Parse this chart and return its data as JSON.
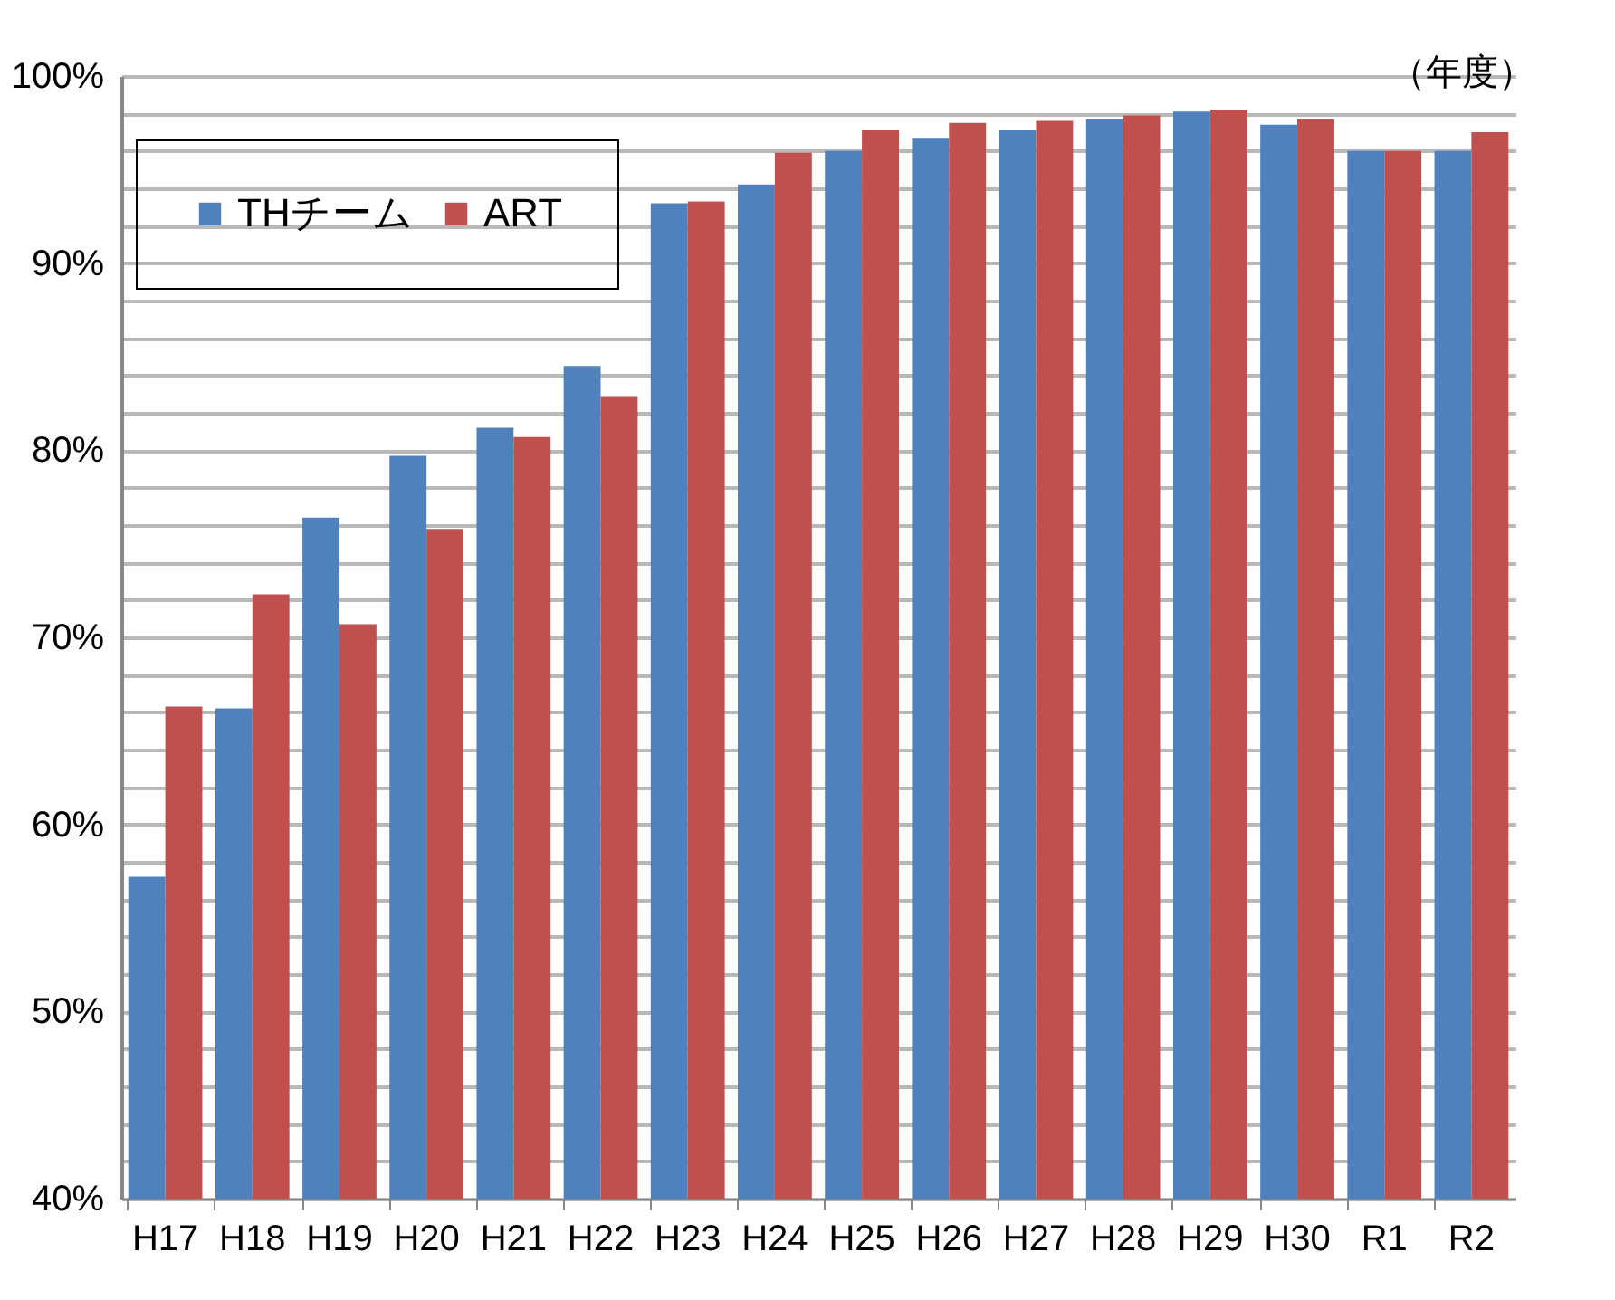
{
  "chart_data": {
    "type": "bar",
    "xlabel": "（年度）",
    "categories": [
      "H17",
      "H18",
      "H19",
      "H20",
      "H21",
      "H22",
      "H23",
      "H24",
      "H25",
      "H26",
      "H27",
      "H28",
      "H29",
      "H30",
      "R1",
      "R2"
    ],
    "series": [
      {
        "name": "THチーム",
        "color": "#4f81bd",
        "values": [
          57.2,
          66.2,
          76.4,
          79.7,
          81.2,
          84.5,
          93.2,
          94.2,
          96.0,
          96.7,
          97.1,
          97.7,
          98.1,
          97.4,
          96.0,
          96.0
        ]
      },
      {
        "name": "ART",
        "color": "#c0504d",
        "values": [
          66.3,
          72.3,
          70.7,
          75.8,
          80.7,
          82.9,
          93.3,
          95.9,
          97.1,
          97.5,
          97.6,
          97.9,
          98.2,
          97.7,
          96.0,
          97.0
        ]
      }
    ],
    "ylim": [
      40,
      100
    ],
    "yticks": [
      {
        "value": 40,
        "label": "40%"
      },
      {
        "value": 42,
        "label": null
      },
      {
        "value": 44,
        "label": null
      },
      {
        "value": 46,
        "label": null
      },
      {
        "value": 48,
        "label": null
      },
      {
        "value": 50,
        "label": "50%"
      },
      {
        "value": 52,
        "label": null
      },
      {
        "value": 54,
        "label": null
      },
      {
        "value": 56,
        "label": null
      },
      {
        "value": 58,
        "label": null
      },
      {
        "value": 60,
        "label": "60%"
      },
      {
        "value": 62,
        "label": null
      },
      {
        "value": 64,
        "label": null
      },
      {
        "value": 66,
        "label": null
      },
      {
        "value": 68,
        "label": null
      },
      {
        "value": 70,
        "label": "70%"
      },
      {
        "value": 72,
        "label": null
      },
      {
        "value": 74,
        "label": null
      },
      {
        "value": 76,
        "label": null
      },
      {
        "value": 78,
        "label": null
      },
      {
        "value": 80,
        "label": "80%"
      },
      {
        "value": 82,
        "label": null
      },
      {
        "value": 84,
        "label": null
      },
      {
        "value": 86,
        "label": null
      },
      {
        "value": 88,
        "label": null
      },
      {
        "value": 90,
        "label": "90%"
      },
      {
        "value": 92,
        "label": null
      },
      {
        "value": 94,
        "label": null
      },
      {
        "value": 96,
        "label": null
      },
      {
        "value": 98,
        "label": null
      },
      {
        "value": 100,
        "label": "100%"
      }
    ],
    "grid": "y",
    "legend": "top left"
  }
}
